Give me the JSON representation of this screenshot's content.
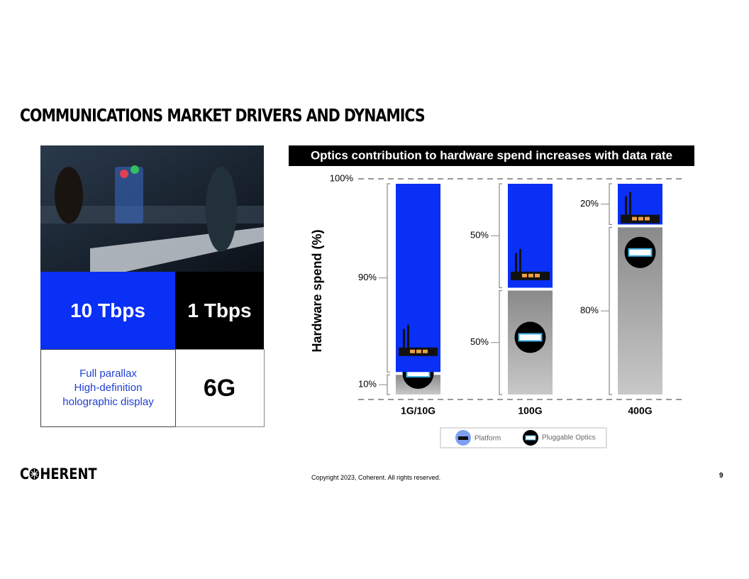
{
  "header": {
    "title": "COMMUNICATIONS MARKET DRIVERS AND DYNAMICS"
  },
  "panels": {
    "left_top": "10 Tbps",
    "right_top": "1 Tbps",
    "left_bottom": [
      "Full parallax",
      "High-definition",
      "holographic display"
    ],
    "right_bottom": "6G"
  },
  "footer": {
    "logo": [
      "C",
      "HERENT"
    ],
    "copyright": "Copyright 2023, Coherent. All rights reserved.",
    "page": "9"
  },
  "chart_data": {
    "type": "stacked_bar",
    "title": "Optics contribution to hardware spend increases with data rate",
    "y_label": "Hardware spend (%)",
    "categories": [
      "1G/10G",
      "100G",
      "400G"
    ],
    "series": [
      {
        "name": "Platform",
        "color": "#0a2ff5",
        "values": [
          90,
          50,
          20
        ],
        "value_labels": [
          "90%",
          "50%",
          "20%"
        ]
      },
      {
        "name": "Pluggable Optics",
        "color": "#8a8a8a",
        "values": [
          10,
          50,
          80
        ],
        "value_labels": [
          "10%",
          "50%",
          "80%"
        ]
      }
    ],
    "ylim": [
      0,
      100
    ],
    "yticks": [
      {
        "value": 100,
        "label": "100%"
      }
    ]
  }
}
